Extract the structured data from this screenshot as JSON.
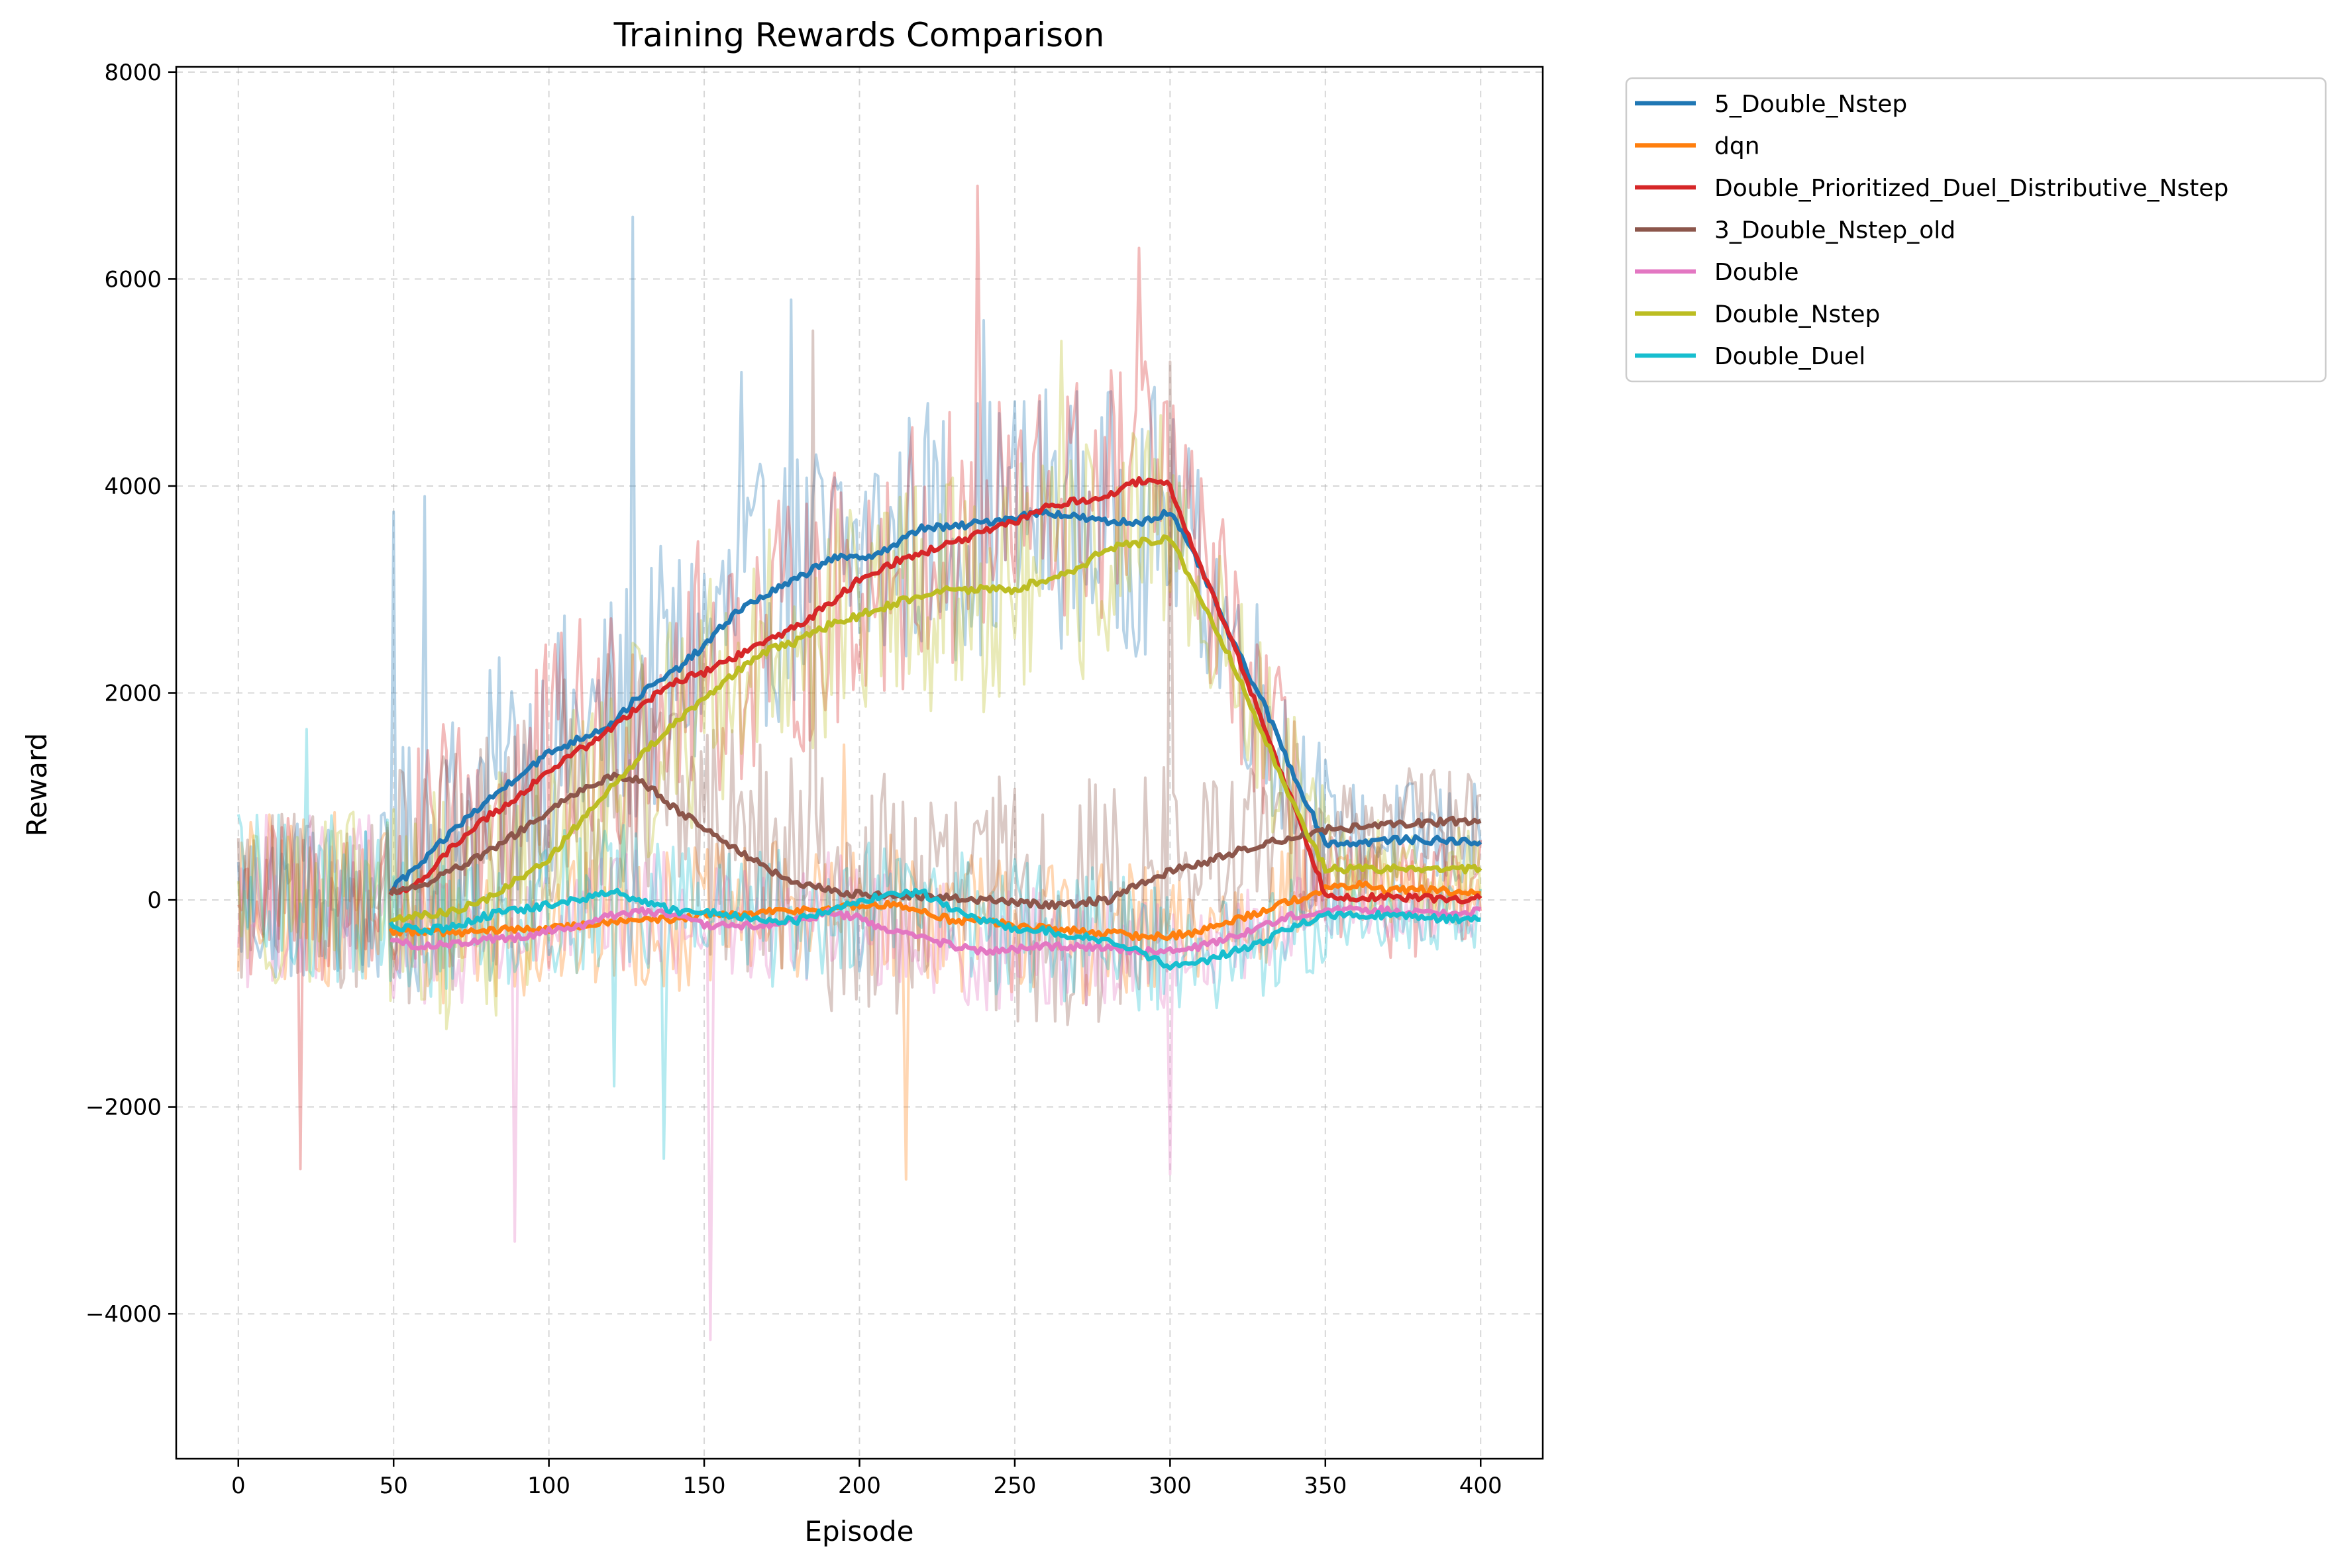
{
  "chart_data": {
    "type": "line",
    "title": "Training Rewards Comparison",
    "xlabel": "Episode",
    "ylabel": "Reward",
    "xlim": [
      -20,
      420
    ],
    "ylim": [
      -5400,
      8050
    ],
    "xticks": [
      0,
      50,
      100,
      150,
      200,
      250,
      300,
      350,
      400
    ],
    "yticks": [
      -4000,
      -2000,
      0,
      2000,
      4000,
      6000,
      8000
    ],
    "xtick_labels": [
      "0",
      "50",
      "100",
      "150",
      "200",
      "250",
      "300",
      "350",
      "400"
    ],
    "ytick_labels": [
      "−4000",
      "−2000",
      "0",
      "2000",
      "4000",
      "6000",
      "8000"
    ],
    "grid": true,
    "legend_position": "outside-top-right",
    "series": [
      {
        "name": "5_Double_Nstep",
        "color": "#1f77b4",
        "smoothed_x": [
          49,
          60,
          70,
          80,
          90,
          100,
          110,
          120,
          130,
          140,
          150,
          160,
          170,
          180,
          190,
          200,
          210,
          220,
          230,
          240,
          250,
          260,
          270,
          280,
          290,
          300,
          310,
          320,
          330,
          340,
          350,
          360,
          370,
          380,
          390,
          400
        ],
        "smoothed_y": [
          100,
          380,
          700,
          950,
          1200,
          1420,
          1560,
          1700,
          2000,
          2200,
          2450,
          2780,
          2950,
          3100,
          3300,
          3300,
          3400,
          3600,
          3600,
          3650,
          3700,
          3750,
          3700,
          3650,
          3650,
          3750,
          3200,
          2500,
          1900,
          1200,
          550,
          550,
          580,
          580,
          570,
          560
        ],
        "noise": 1300,
        "spikes": [
          [
            50,
            3750
          ],
          [
            60,
            3900
          ],
          [
            127,
            6600
          ],
          [
            178,
            5800
          ],
          [
            162,
            5100
          ],
          [
            240,
            5600
          ]
        ]
      },
      {
        "name": "dqn",
        "color": "#ff7f0e",
        "smoothed_x": [
          49,
          60,
          70,
          80,
          90,
          100,
          110,
          120,
          130,
          140,
          150,
          160,
          170,
          180,
          190,
          200,
          210,
          220,
          230,
          240,
          250,
          260,
          270,
          280,
          290,
          300,
          310,
          320,
          330,
          340,
          350,
          360,
          370,
          380,
          390,
          400
        ],
        "smoothed_y": [
          -300,
          -300,
          -320,
          -300,
          -280,
          -280,
          -250,
          -200,
          -180,
          -200,
          -150,
          -150,
          -120,
          -100,
          -80,
          -60,
          -50,
          -100,
          -200,
          -200,
          -250,
          -280,
          -300,
          -320,
          -350,
          -350,
          -300,
          -200,
          -100,
          0,
          100,
          150,
          100,
          100,
          80,
          60
        ],
        "noise": 700,
        "spikes": [
          [
            215,
            -2700
          ],
          [
            195,
            1500
          ]
        ]
      },
      {
        "name": "Double_Prioritized_Duel_Distributive_Nstep",
        "color": "#d62728",
        "smoothed_x": [
          49,
          60,
          70,
          80,
          90,
          100,
          110,
          120,
          130,
          140,
          150,
          160,
          170,
          180,
          190,
          200,
          210,
          220,
          230,
          240,
          250,
          260,
          270,
          280,
          290,
          300,
          310,
          320,
          330,
          340,
          350,
          360,
          370,
          380,
          390,
          400
        ],
        "smoothed_y": [
          50,
          200,
          550,
          800,
          1000,
          1250,
          1450,
          1650,
          1900,
          2100,
          2200,
          2350,
          2500,
          2650,
          2850,
          3100,
          3250,
          3350,
          3450,
          3550,
          3650,
          3800,
          3850,
          3900,
          4050,
          4000,
          3200,
          2500,
          1700,
          900,
          50,
          30,
          20,
          20,
          10,
          10
        ],
        "noise": 1300,
        "spikes": [
          [
            238,
            6900
          ],
          [
            290,
            6300
          ],
          [
            20,
            -2600
          ]
        ]
      },
      {
        "name": "3_Double_Nstep_old",
        "color": "#8c564b",
        "smoothed_x": [
          49,
          60,
          70,
          80,
          90,
          100,
          110,
          120,
          130,
          140,
          150,
          160,
          170,
          180,
          190,
          200,
          210,
          220,
          230,
          240,
          250,
          260,
          270,
          280,
          290,
          300,
          310,
          320,
          330,
          340,
          350,
          360,
          370,
          380,
          390,
          400
        ],
        "smoothed_y": [
          80,
          150,
          300,
          450,
          650,
          850,
          1050,
          1200,
          1150,
          900,
          700,
          500,
          300,
          150,
          100,
          50,
          50,
          30,
          20,
          0,
          -20,
          -50,
          -30,
          0,
          150,
          280,
          350,
          450,
          550,
          600,
          680,
          700,
          720,
          740,
          760,
          760
        ],
        "noise": 1200,
        "spikes": [
          [
            185,
            5500
          ],
          [
            300,
            5200
          ]
        ]
      },
      {
        "name": "Double",
        "color": "#e377c2",
        "smoothed_x": [
          49,
          60,
          70,
          80,
          90,
          100,
          110,
          120,
          130,
          140,
          150,
          160,
          170,
          180,
          190,
          200,
          210,
          220,
          230,
          240,
          250,
          260,
          270,
          280,
          290,
          300,
          310,
          320,
          330,
          340,
          350,
          360,
          370,
          380,
          390,
          400
        ],
        "smoothed_y": [
          -400,
          -450,
          -420,
          -380,
          -360,
          -300,
          -250,
          -150,
          -100,
          -150,
          -250,
          -250,
          -250,
          -200,
          -120,
          -180,
          -300,
          -350,
          -450,
          -500,
          -480,
          -450,
          -450,
          -450,
          -500,
          -500,
          -450,
          -350,
          -250,
          -150,
          -100,
          -100,
          -100,
          -120,
          -120,
          -100
        ],
        "noise": 600,
        "spikes": [
          [
            152,
            -4250
          ],
          [
            89,
            -3300
          ],
          [
            300,
            -2650
          ]
        ]
      },
      {
        "name": "Double_Nstep",
        "color": "#bcbd22",
        "smoothed_x": [
          49,
          60,
          70,
          80,
          90,
          100,
          110,
          120,
          130,
          140,
          150,
          160,
          170,
          180,
          190,
          200,
          210,
          220,
          230,
          240,
          250,
          260,
          270,
          280,
          290,
          300,
          310,
          320,
          330,
          340,
          350,
          360,
          370,
          380,
          390,
          400
        ],
        "smoothed_y": [
          -200,
          -150,
          -100,
          0,
          200,
          400,
          750,
          1100,
          1400,
          1700,
          1950,
          2200,
          2400,
          2500,
          2650,
          2750,
          2850,
          2950,
          3000,
          3000,
          3000,
          3100,
          3200,
          3400,
          3450,
          3500,
          2900,
          2300,
          1600,
          900,
          300,
          300,
          300,
          300,
          300,
          300
        ],
        "noise": 1200,
        "spikes": [
          [
            265,
            5400
          ]
        ]
      },
      {
        "name": "Double_Duel",
        "color": "#17becf",
        "smoothed_x": [
          49,
          60,
          70,
          80,
          90,
          100,
          110,
          120,
          130,
          140,
          150,
          160,
          170,
          180,
          190,
          200,
          210,
          220,
          230,
          240,
          250,
          260,
          270,
          280,
          290,
          300,
          310,
          320,
          330,
          340,
          350,
          360,
          370,
          380,
          390,
          400
        ],
        "smoothed_y": [
          -250,
          -300,
          -250,
          -150,
          -100,
          -50,
          0,
          80,
          0,
          -100,
          -120,
          -150,
          -200,
          -200,
          -100,
          0,
          50,
          80,
          -100,
          -200,
          -280,
          -300,
          -350,
          -400,
          -500,
          -650,
          -600,
          -500,
          -400,
          -250,
          -150,
          -150,
          -150,
          -170,
          -180,
          -200
        ],
        "noise": 700,
        "spikes": [
          [
            22,
            1650
          ],
          [
            121,
            -1800
          ],
          [
            137,
            -2500
          ]
        ]
      }
    ]
  }
}
